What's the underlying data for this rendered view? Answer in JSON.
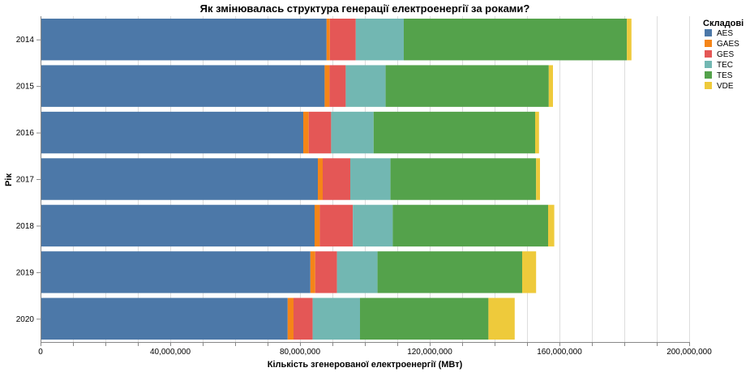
{
  "chart_data": {
    "type": "bar",
    "orientation": "horizontal",
    "stacked": true,
    "title": "Як змінювалась структура генерації електроенергії за роками?",
    "xlabel": "Кількість згенерованої електроенергії (МВт)",
    "ylabel": "Рік",
    "xlim": [
      0,
      200000000
    ],
    "x_ticks": [
      0,
      40000000,
      80000000,
      120000000,
      160000000,
      200000000
    ],
    "x_tick_labels": [
      "0",
      "40,000,000",
      "80,000,000",
      "120,000,000",
      "160,000,000",
      "200,000,000"
    ],
    "grid": true,
    "legend_title": "Складові",
    "legend_position": "right",
    "categories": [
      "2014",
      "2015",
      "2016",
      "2017",
      "2018",
      "2019",
      "2020"
    ],
    "series": [
      {
        "name": "AES",
        "color": "#4c78a8",
        "values": [
          88200000,
          87600000,
          81000000,
          85500000,
          84500000,
          83200000,
          76200000
        ]
      },
      {
        "name": "GAES",
        "color": "#f58518",
        "values": [
          1000000,
          1500000,
          1700000,
          1500000,
          1600000,
          1500000,
          1800000
        ]
      },
      {
        "name": "GES",
        "color": "#e45756",
        "values": [
          8000000,
          5000000,
          6900000,
          8500000,
          10200000,
          6700000,
          5900000
        ]
      },
      {
        "name": "TEC",
        "color": "#72b7b2",
        "values": [
          14800000,
          12300000,
          13100000,
          12400000,
          12300000,
          12500000,
          14600000
        ]
      },
      {
        "name": "TES",
        "color": "#54a24b",
        "values": [
          68800000,
          50300000,
          49800000,
          44900000,
          47900000,
          44600000,
          39600000
        ]
      },
      {
        "name": "VDE",
        "color": "#eeca3b",
        "values": [
          1400000,
          1300000,
          1200000,
          1200000,
          1900000,
          4300000,
          8100000
        ]
      }
    ]
  }
}
